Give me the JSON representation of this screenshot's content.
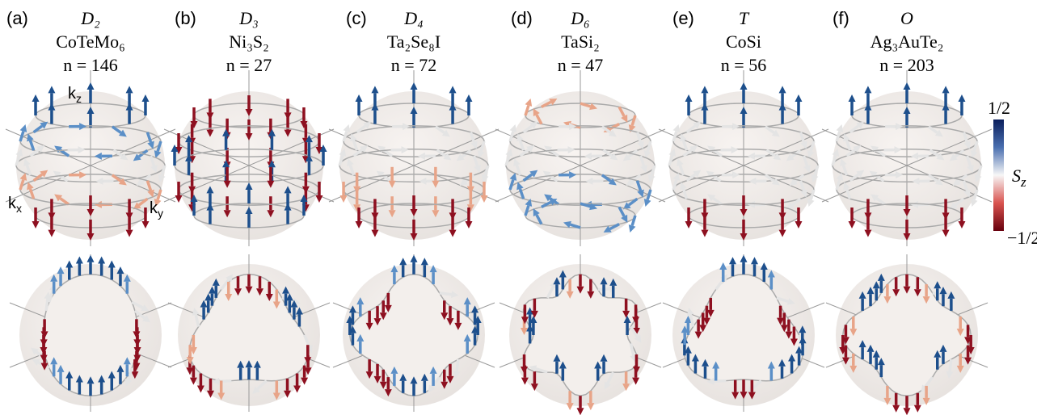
{
  "panels": [
    {
      "label": "(a)",
      "group": "D₂",
      "material": "CoTeMo₆",
      "count": "n = 146"
    },
    {
      "label": "(b)",
      "group": "D₃",
      "material": "Ni₃S₂",
      "count": "n = 27"
    },
    {
      "label": "(c)",
      "group": "D₄",
      "material": "Ta₂Se₈I",
      "count": "n = 72"
    },
    {
      "label": "(d)",
      "group": "D₆",
      "material": "TaSi₂",
      "count": "n = 47"
    },
    {
      "label": "(e)",
      "group": "T",
      "material": "CoSi",
      "count": "n = 56"
    },
    {
      "label": "(f)",
      "group": "O",
      "material": "Ag₃AuTe₂",
      "count": "n = 203"
    }
  ],
  "axis_labels": [
    {
      "main": "k",
      "sub": "z"
    },
    {
      "main": "k",
      "sub": "x"
    },
    {
      "main": "k",
      "sub": "y"
    }
  ],
  "colorbar": {
    "max_label": "1/2",
    "min_label": "−1/2",
    "label_main": "S",
    "label_sub": "z"
  }
}
